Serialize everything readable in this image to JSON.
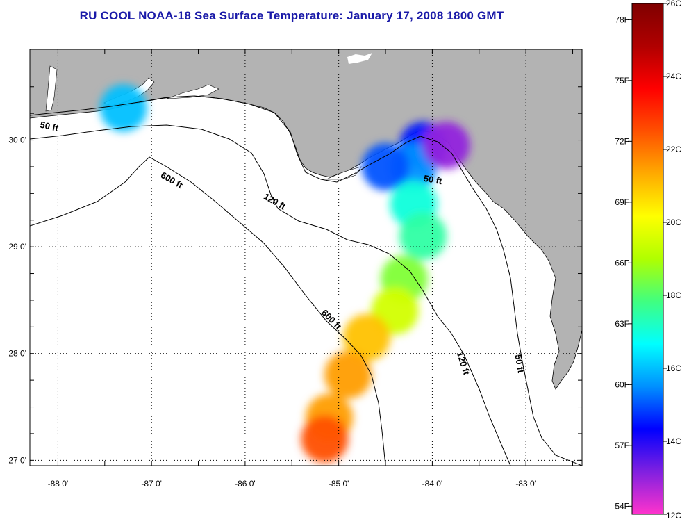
{
  "title": "RU COOL  NOAA-18  Sea Surface Temperature:  January 17, 2008 1800 GMT",
  "map": {
    "lon_range": [
      -88.3,
      -82.4
    ],
    "lat_range": [
      26.95,
      30.85
    ],
    "lon_ticks": [
      {
        "value": -88,
        "label": "-88 0'"
      },
      {
        "value": -87,
        "label": "-87 0'"
      },
      {
        "value": -86,
        "label": "-86 0'"
      },
      {
        "value": -85,
        "label": "-85 0'"
      },
      {
        "value": -84,
        "label": "-84 0'"
      },
      {
        "value": -83,
        "label": "-83 0'"
      }
    ],
    "lat_ticks": [
      {
        "value": 30,
        "label": "30 0'"
      },
      {
        "value": 29,
        "label": "29 0'"
      },
      {
        "value": 28,
        "label": "28 0'"
      },
      {
        "value": 27,
        "label": "27 0'"
      }
    ],
    "land_color": "#b3b3b3",
    "water_color": "#ffffff",
    "grid": "dotted",
    "contour_labels": [
      {
        "text": "50 ft",
        "lon": -88.1,
        "lat": 30.1
      },
      {
        "text": "600 ft",
        "lon": -86.8,
        "lat": 29.6
      },
      {
        "text": "120 ft",
        "lon": -85.7,
        "lat": 29.4
      },
      {
        "text": "50 ft",
        "lon": -84.0,
        "lat": 29.6
      },
      {
        "text": "600 ft",
        "lon": -85.1,
        "lat": 28.3
      },
      {
        "text": "120 ft",
        "lon": -83.7,
        "lat": 27.9
      },
      {
        "text": "50 ft",
        "lon": -83.1,
        "lat": 27.9
      }
    ]
  },
  "colorbar": {
    "fahrenheit_labels": [
      "78F",
      "75F",
      "72F",
      "69F",
      "66F",
      "63F",
      "60F",
      "57F",
      "54F"
    ],
    "celsius_labels": [
      "26C",
      "24C",
      "22C",
      "20C",
      "18C",
      "16C",
      "14C",
      "12C"
    ],
    "range_c": [
      12,
      26
    ],
    "stops": [
      "#ff33cc",
      "#8020e0",
      "#0000ff",
      "#0090ff",
      "#00ffff",
      "#40ff80",
      "#b0ff00",
      "#ffff00",
      "#ffaa00",
      "#ff5000",
      "#ff0000",
      "#b00000",
      "#800000"
    ]
  },
  "chart_data": {
    "type": "heatmap",
    "title": "RU COOL  NOAA-18  Sea Surface Temperature:  January 17, 2008 1800 GMT",
    "xlabel": "",
    "ylabel": "",
    "xlim": [
      -88.3,
      -82.4
    ],
    "ylim": [
      26.95,
      30.85
    ],
    "value_range": [
      12,
      26
    ],
    "units": "C",
    "regions": [
      {
        "lon": -84.1,
        "lat": 29.95,
        "temp_c": 14.5
      },
      {
        "lon": -84.2,
        "lat": 29.75,
        "temp_c": 15.5
      },
      {
        "lon": -83.85,
        "lat": 29.95,
        "temp_c": 13.0
      },
      {
        "lon": -84.5,
        "lat": 29.75,
        "temp_c": 15.0
      },
      {
        "lon": -84.2,
        "lat": 29.4,
        "temp_c": 17.0
      },
      {
        "lon": -84.1,
        "lat": 29.1,
        "temp_c": 17.5
      },
      {
        "lon": -84.3,
        "lat": 28.7,
        "temp_c": 18.5
      },
      {
        "lon": -84.4,
        "lat": 28.4,
        "temp_c": 19.5
      },
      {
        "lon": -84.7,
        "lat": 28.15,
        "temp_c": 21.0
      },
      {
        "lon": -84.9,
        "lat": 27.8,
        "temp_c": 21.5
      },
      {
        "lon": -85.1,
        "lat": 27.4,
        "temp_c": 21.5
      },
      {
        "lon": -85.15,
        "lat": 27.2,
        "temp_c": 22.5
      },
      {
        "lon": -87.3,
        "lat": 30.3,
        "temp_c": 16.0
      }
    ]
  }
}
